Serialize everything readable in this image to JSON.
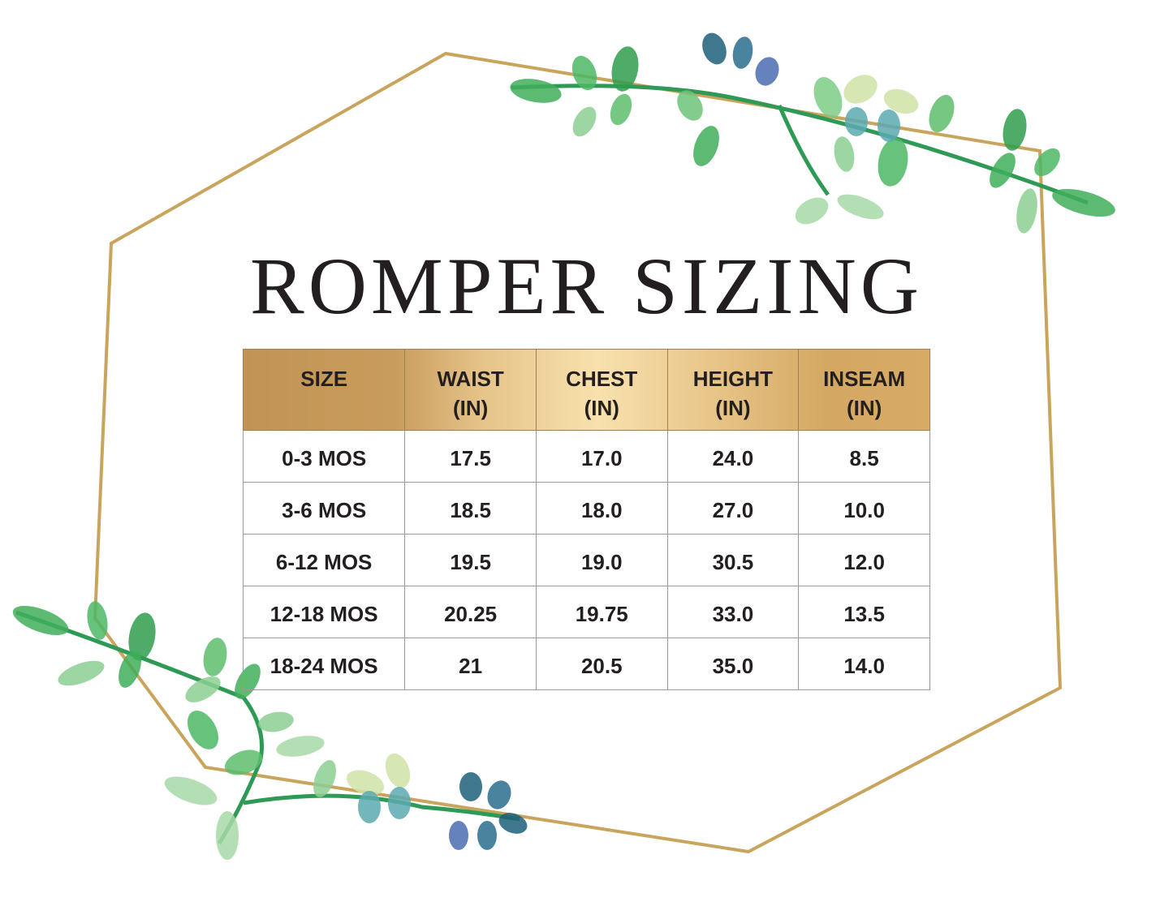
{
  "title": "ROMPER SIZING",
  "colors": {
    "frame": "#c9a45c",
    "header_gold": "#d4a862",
    "leaf": "#3fae5a",
    "text": "#231f20"
  },
  "table": {
    "headers": [
      {
        "line1": "SIZE",
        "line2": ""
      },
      {
        "line1": "WAIST",
        "line2": "(IN)"
      },
      {
        "line1": "CHEST",
        "line2": "(IN)"
      },
      {
        "line1": "HEIGHT",
        "line2": "(IN)"
      },
      {
        "line1": "INSEAM",
        "line2": "(IN)"
      }
    ],
    "rows": [
      [
        "0-3 MOS",
        "17.5",
        "17.0",
        "24.0",
        "8.5"
      ],
      [
        "3-6 MOS",
        "18.5",
        "18.0",
        "27.0",
        "10.0"
      ],
      [
        "6-12 MOS",
        "19.5",
        "19.0",
        "30.5",
        "12.0"
      ],
      [
        "12-18 MOS",
        "20.25",
        "19.75",
        "33.0",
        "13.5"
      ],
      [
        "18-24 MOS",
        "21",
        "20.5",
        "35.0",
        "14.0"
      ]
    ]
  }
}
